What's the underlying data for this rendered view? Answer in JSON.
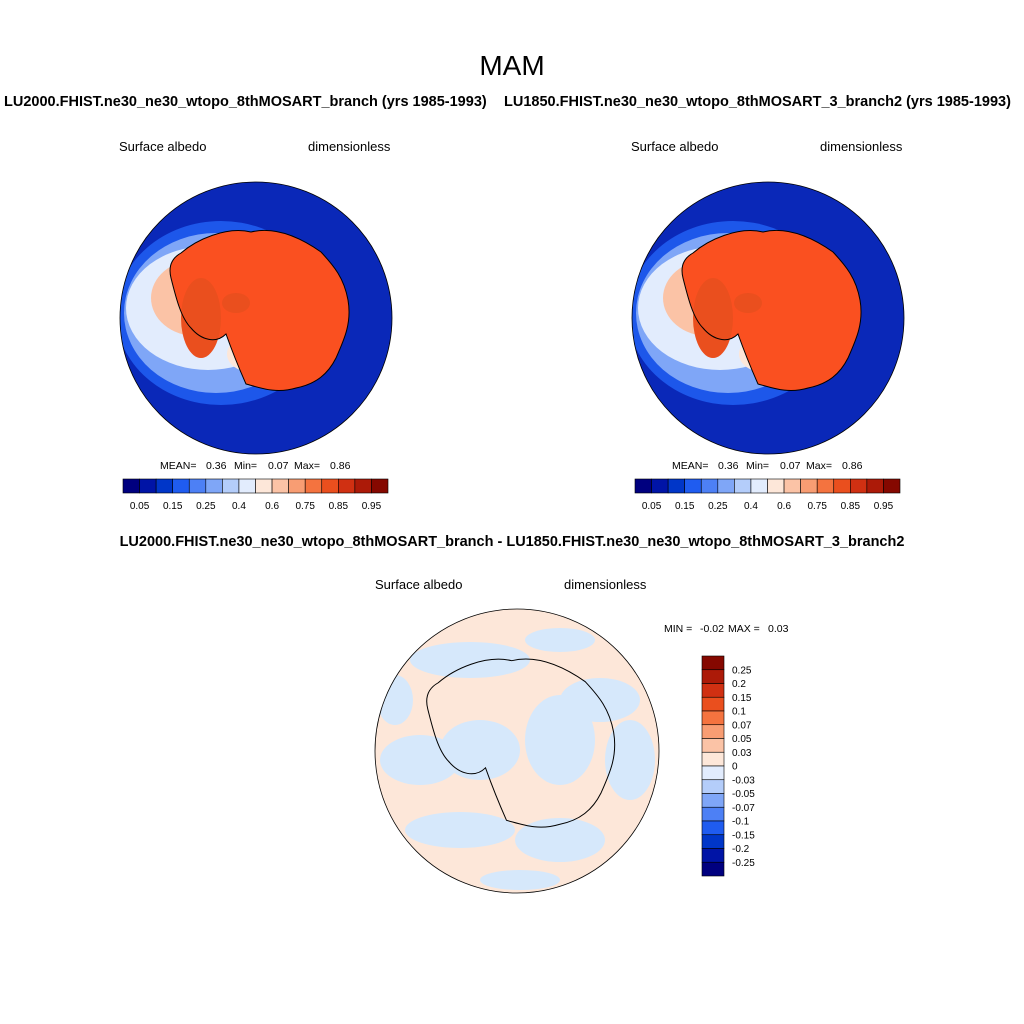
{
  "figure": {
    "title": "MAM"
  },
  "panels": [
    {
      "run_title": "LU2000.FHIST.ne30_ne30_wtopo_8thMOSART_branch (yrs 1985-1993)",
      "variable": "Surface albedo",
      "units": "dimensionless",
      "stats": {
        "mean_label": "MEAN=",
        "mean": "0.36",
        "min_label": "Min=",
        "min": "0.07",
        "max_label": "Max=",
        "max": "0.86"
      }
    },
    {
      "run_title": "LU1850.FHIST.ne30_ne30_wtopo_8thMOSART_3_branch2 (yrs 1985-1993)",
      "variable": "Surface albedo",
      "units": "dimensionless",
      "stats": {
        "mean_label": "MEAN=",
        "mean": "0.36",
        "min_label": "Min=",
        "min": "0.07",
        "max_label": "Max=",
        "max": "0.86"
      }
    }
  ],
  "difference": {
    "title": "LU2000.FHIST.ne30_ne30_wtopo_8thMOSART_branch - LU1850.FHIST.ne30_ne30_wtopo_8thMOSART_3_branch2",
    "variable": "Surface albedo",
    "units": "dimensionless",
    "stats": {
      "min_label": "MIN =",
      "min": "-0.02",
      "max_label": "MAX =",
      "max": "0.03"
    }
  },
  "albedo_colorbar": {
    "labels": [
      "0.05",
      "0.15",
      "0.25",
      "0.4",
      "0.6",
      "0.75",
      "0.85",
      "0.95"
    ],
    "colors": [
      "#00007f",
      "#0014a6",
      "#0036c8",
      "#1f5cf0",
      "#4d80f5",
      "#7fa6f7",
      "#b4cdfa",
      "#e2ecfd",
      "#fde7d9",
      "#fbc3a6",
      "#f89d73",
      "#f4733f",
      "#ea4f1e",
      "#d03012",
      "#ac1a08",
      "#850800"
    ]
  },
  "diff_colorbar": {
    "labels": [
      "0.25",
      "0.2",
      "0.15",
      "0.1",
      "0.07",
      "0.05",
      "0.03",
      "0",
      "-0.03",
      "-0.05",
      "-0.07",
      "-0.1",
      "-0.15",
      "-0.2",
      "-0.25"
    ],
    "colors": [
      "#850800",
      "#ac1a08",
      "#d03012",
      "#ea4f1e",
      "#f4733f",
      "#f89d73",
      "#fbc3a6",
      "#fde7d9",
      "#e2ecfd",
      "#b4cdfa",
      "#7fa6f7",
      "#4d80f5",
      "#1f5cf0",
      "#0036c8",
      "#0014a6",
      "#00007f"
    ]
  },
  "map_colors": {
    "ocean": "#0a28b8",
    "ice_land": "#fa5020",
    "diff_positive": "#fde7d9",
    "diff_negative": "#d6e8fb"
  }
}
